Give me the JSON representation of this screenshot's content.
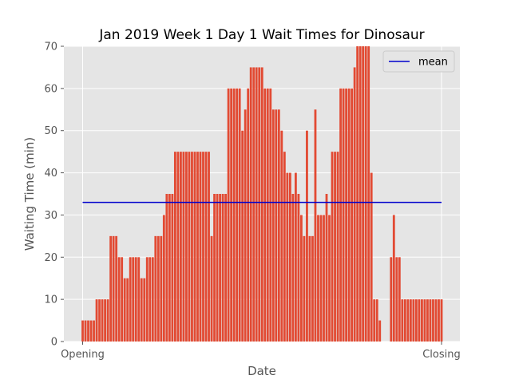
{
  "chart_data": {
    "type": "bar",
    "title": "Jan 2019 Week 1 Day 1 Wait Times for Dinosaur",
    "xlabel": "Date",
    "ylabel": "Waiting Time (min)",
    "xticks": [
      "Opening",
      "Closing"
    ],
    "ylim": [
      0,
      70
    ],
    "yticks": [
      0,
      10,
      20,
      30,
      40,
      50,
      60,
      70
    ],
    "grid": true,
    "legend_position": "top-right",
    "colors": {
      "bars": "#e24a33",
      "mean": "#0000cc",
      "axes_bg": "#e5e5e5",
      "grid": "#ffffff",
      "text": "#555555"
    },
    "values": [
      5,
      5,
      5,
      5,
      5,
      10,
      10,
      10,
      10,
      10,
      25,
      25,
      25,
      20,
      20,
      15,
      15,
      20,
      20,
      20,
      20,
      15,
      15,
      20,
      20,
      20,
      25,
      25,
      25,
      30,
      35,
      35,
      35,
      45,
      45,
      45,
      45,
      45,
      45,
      45,
      45,
      45,
      45,
      45,
      45,
      45,
      25,
      35,
      35,
      35,
      35,
      35,
      60,
      60,
      60,
      60,
      60,
      50,
      55,
      60,
      65,
      65,
      65,
      65,
      65,
      60,
      60,
      60,
      55,
      55,
      55,
      50,
      45,
      40,
      40,
      35,
      40,
      35,
      30,
      25,
      50,
      25,
      25,
      55,
      30,
      30,
      30,
      35,
      30,
      45,
      45,
      45,
      60,
      60,
      60,
      60,
      60,
      65,
      70,
      70,
      70,
      70,
      70,
      40,
      10,
      10,
      5,
      0,
      0,
      0,
      20,
      30,
      20,
      20,
      10,
      10,
      10,
      10,
      10,
      10,
      10,
      10,
      10,
      10,
      10,
      10,
      10,
      10,
      10
    ],
    "series": [
      {
        "name": "mean",
        "type": "hline",
        "value": 33
      }
    ]
  }
}
